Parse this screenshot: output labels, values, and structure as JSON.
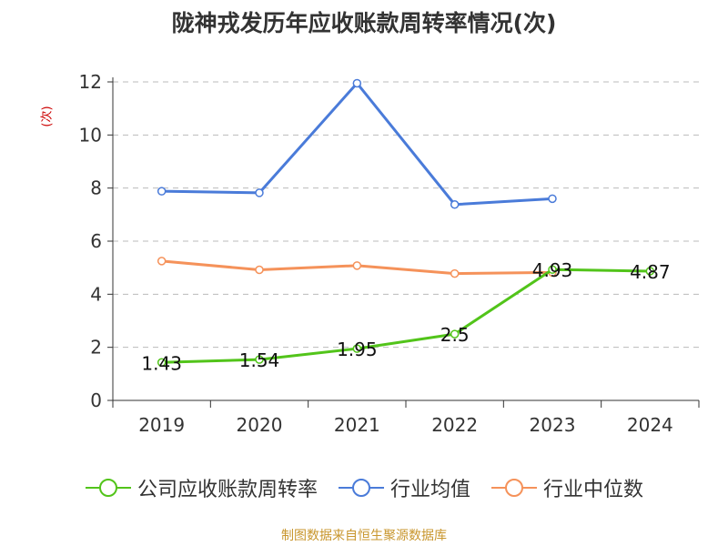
{
  "chart_data": {
    "type": "line",
    "title": "陇神戎发历年应收账款周转率情况(次)",
    "ylabel": "(次)",
    "xlabel": "",
    "categories": [
      "2019",
      "2020",
      "2021",
      "2022",
      "2023",
      "2024"
    ],
    "ylim": [
      0,
      12
    ],
    "yticks": [
      0,
      2,
      4,
      6,
      8,
      10,
      12
    ],
    "grid": true,
    "legend_position": "bottom",
    "series": [
      {
        "name": "公司应收账款周转率",
        "color": "#52c41a",
        "values": [
          1.43,
          1.54,
          1.95,
          2.5,
          4.93,
          4.87
        ],
        "labels": [
          "1.43",
          "1.54",
          "1.95",
          "2.5",
          "4.93",
          "4.87"
        ]
      },
      {
        "name": "行业均值",
        "color": "#4a7bd9",
        "values": [
          7.88,
          7.82,
          11.95,
          7.38,
          7.6,
          null
        ]
      },
      {
        "name": "行业中位数",
        "color": "#f5925a",
        "values": [
          5.25,
          4.92,
          5.08,
          4.78,
          4.82,
          null
        ]
      }
    ]
  },
  "source": "制图数据来自恒生聚源数据库"
}
